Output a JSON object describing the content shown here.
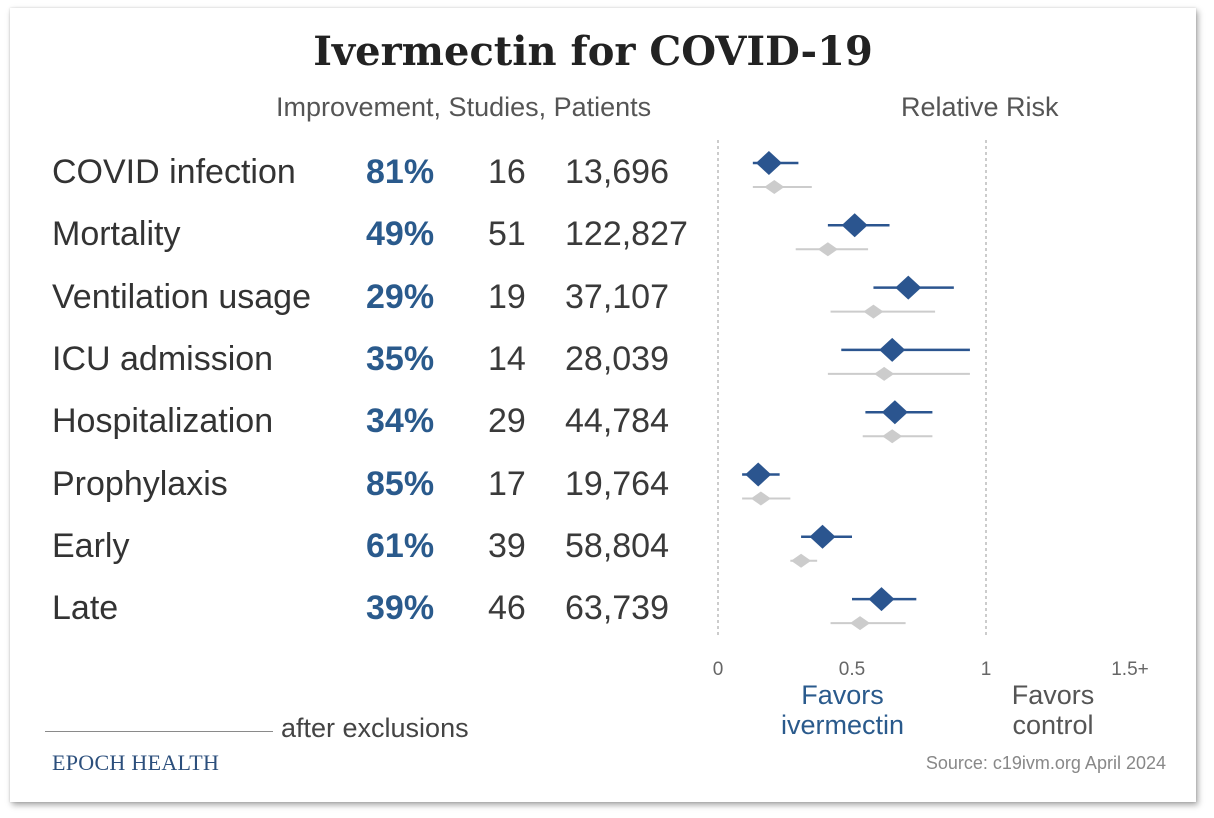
{
  "title": "Ivermectin for COVID-19",
  "headers": {
    "left": "Improvement, Studies, Patients",
    "right": "Relative Risk"
  },
  "colors": {
    "accent": "#2a5a8c",
    "marker": "#2b558f",
    "grey_marker": "#cccccc"
  },
  "legend": {
    "text": "after exclusions"
  },
  "brand": "EPOCH HEALTH",
  "source": "Source: c19ivm.org April 2024",
  "favors": {
    "ivermectin": [
      "Favors",
      "ivermectin"
    ],
    "control": [
      "Favors",
      "control"
    ]
  },
  "chart_data": {
    "type": "forest",
    "x_axis": {
      "ticks": [
        "0",
        "0.5",
        "1",
        "1.5+"
      ],
      "tick_values": [
        0,
        0.5,
        1,
        1.5
      ],
      "range": [
        0,
        1.5
      ],
      "reference_line": 1,
      "label_left": "Favors ivermectin",
      "label_right": "Favors control"
    },
    "rows": [
      {
        "label": "COVID infection",
        "improvement": "81%",
        "studies": "16",
        "patients": "13,696",
        "rr": 0.19,
        "ci": [
          0.13,
          0.3
        ],
        "rr_excl": 0.21,
        "ci_excl": [
          0.13,
          0.35
        ]
      },
      {
        "label": "Mortality",
        "improvement": "49%",
        "studies": "51",
        "patients": "122,827",
        "rr": 0.51,
        "ci": [
          0.41,
          0.64
        ],
        "rr_excl": 0.41,
        "ci_excl": [
          0.29,
          0.56
        ]
      },
      {
        "label": "Ventilation usage",
        "improvement": "29%",
        "studies": "19",
        "patients": "37,107",
        "rr": 0.71,
        "ci": [
          0.58,
          0.88
        ],
        "rr_excl": 0.58,
        "ci_excl": [
          0.42,
          0.81
        ]
      },
      {
        "label": "ICU admission",
        "improvement": "35%",
        "studies": "14",
        "patients": "28,039",
        "rr": 0.65,
        "ci": [
          0.46,
          0.94
        ],
        "rr_excl": 0.62,
        "ci_excl": [
          0.41,
          0.94
        ]
      },
      {
        "label": "Hospitalization",
        "improvement": "34%",
        "studies": "29",
        "patients": "44,784",
        "rr": 0.66,
        "ci": [
          0.55,
          0.8
        ],
        "rr_excl": 0.65,
        "ci_excl": [
          0.54,
          0.8
        ]
      },
      {
        "label": "Prophylaxis",
        "improvement": "85%",
        "studies": "17",
        "patients": "19,764",
        "rr": 0.15,
        "ci": [
          0.09,
          0.23
        ],
        "rr_excl": 0.16,
        "ci_excl": [
          0.09,
          0.27
        ]
      },
      {
        "label": "Early",
        "improvement": "61%",
        "studies": "39",
        "patients": "58,804",
        "rr": 0.39,
        "ci": [
          0.31,
          0.5
        ],
        "rr_excl": 0.31,
        "ci_excl": [
          0.27,
          0.37
        ]
      },
      {
        "label": "Late",
        "improvement": "39%",
        "studies": "46",
        "patients": "63,739",
        "rr": 0.61,
        "ci": [
          0.5,
          0.74
        ],
        "rr_excl": 0.53,
        "ci_excl": [
          0.42,
          0.7
        ]
      }
    ]
  }
}
